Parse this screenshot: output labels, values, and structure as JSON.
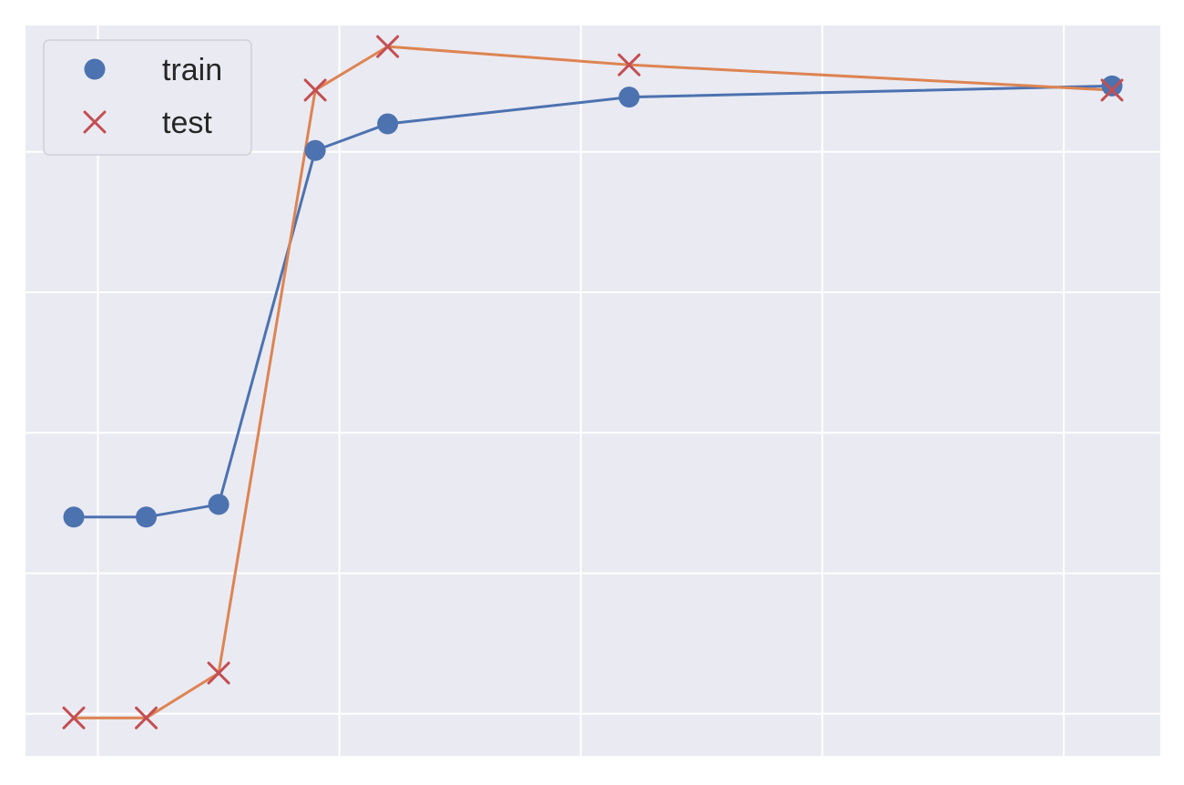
{
  "chart_data": {
    "type": "line",
    "x": [
      0.55,
      0.7,
      0.85,
      1.05,
      1.2,
      1.7,
      2.7
    ],
    "xlim": [
      0.45,
      2.8
    ],
    "ylim": [
      0.67,
      1.19
    ],
    "grid": true,
    "legend_position": "top-left",
    "series": [
      {
        "name": "train",
        "marker": "circle",
        "marker_color": "#4C72B0",
        "line_color": "#4C72B0",
        "values": [
          0.84,
          0.84,
          0.849,
          1.101,
          1.12,
          1.139,
          1.147
        ]
      },
      {
        "name": "test",
        "marker": "x",
        "marker_color": "#C44E52",
        "line_color": "#DD8452",
        "values": [
          0.697,
          0.697,
          0.729,
          1.144,
          1.175,
          1.162,
          1.144
        ]
      }
    ],
    "x_gridlines": [
      0.6,
      1.1,
      1.6,
      2.1,
      2.6
    ],
    "y_gridlines": [
      0.7,
      0.8,
      0.9,
      1.0,
      1.1
    ]
  }
}
